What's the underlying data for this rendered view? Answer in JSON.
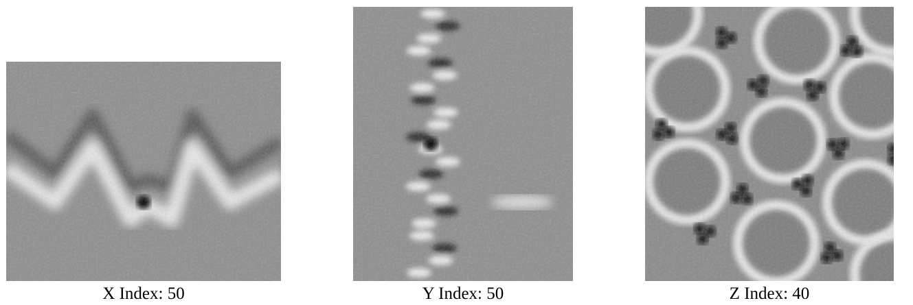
{
  "panels": [
    {
      "label": "X Index: 50"
    },
    {
      "label": "Y Index: 50"
    },
    {
      "label": "Z Index: 40"
    }
  ]
}
